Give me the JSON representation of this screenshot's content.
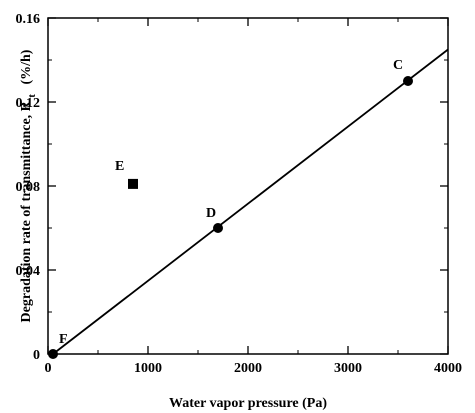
{
  "chart_data": {
    "type": "scatter",
    "xlabel": "Water vapor pressure (Pa)",
    "ylabel": "Degradation rate of transmittance, R",
    "ylabel_subscript": "t",
    "ylabel_unit": "(%/h)",
    "xlim": [
      0,
      4000
    ],
    "ylim": [
      0,
      0.16
    ],
    "x_ticks": [
      0,
      1000,
      2000,
      3000,
      4000
    ],
    "y_ticks": [
      0,
      0.04,
      0.08,
      0.12,
      0.16
    ],
    "x_tick_labels": [
      "0",
      "1000",
      "2000",
      "3000",
      "4000"
    ],
    "y_tick_labels": [
      "0",
      "0.04",
      "0.08",
      "0.12",
      "0.16"
    ],
    "grid": false,
    "points": [
      {
        "label": "C",
        "x": 3600,
        "y": 0.13,
        "marker": "circle"
      },
      {
        "label": "D",
        "x": 1700,
        "y": 0.06,
        "marker": "circle"
      },
      {
        "label": "E",
        "x": 850,
        "y": 0.081,
        "marker": "square"
      },
      {
        "label": "F",
        "x": 50,
        "y": 0.0,
        "marker": "circle"
      }
    ],
    "fit_line": {
      "x": [
        50,
        4000
      ],
      "y": [
        0.0,
        0.145
      ]
    }
  }
}
